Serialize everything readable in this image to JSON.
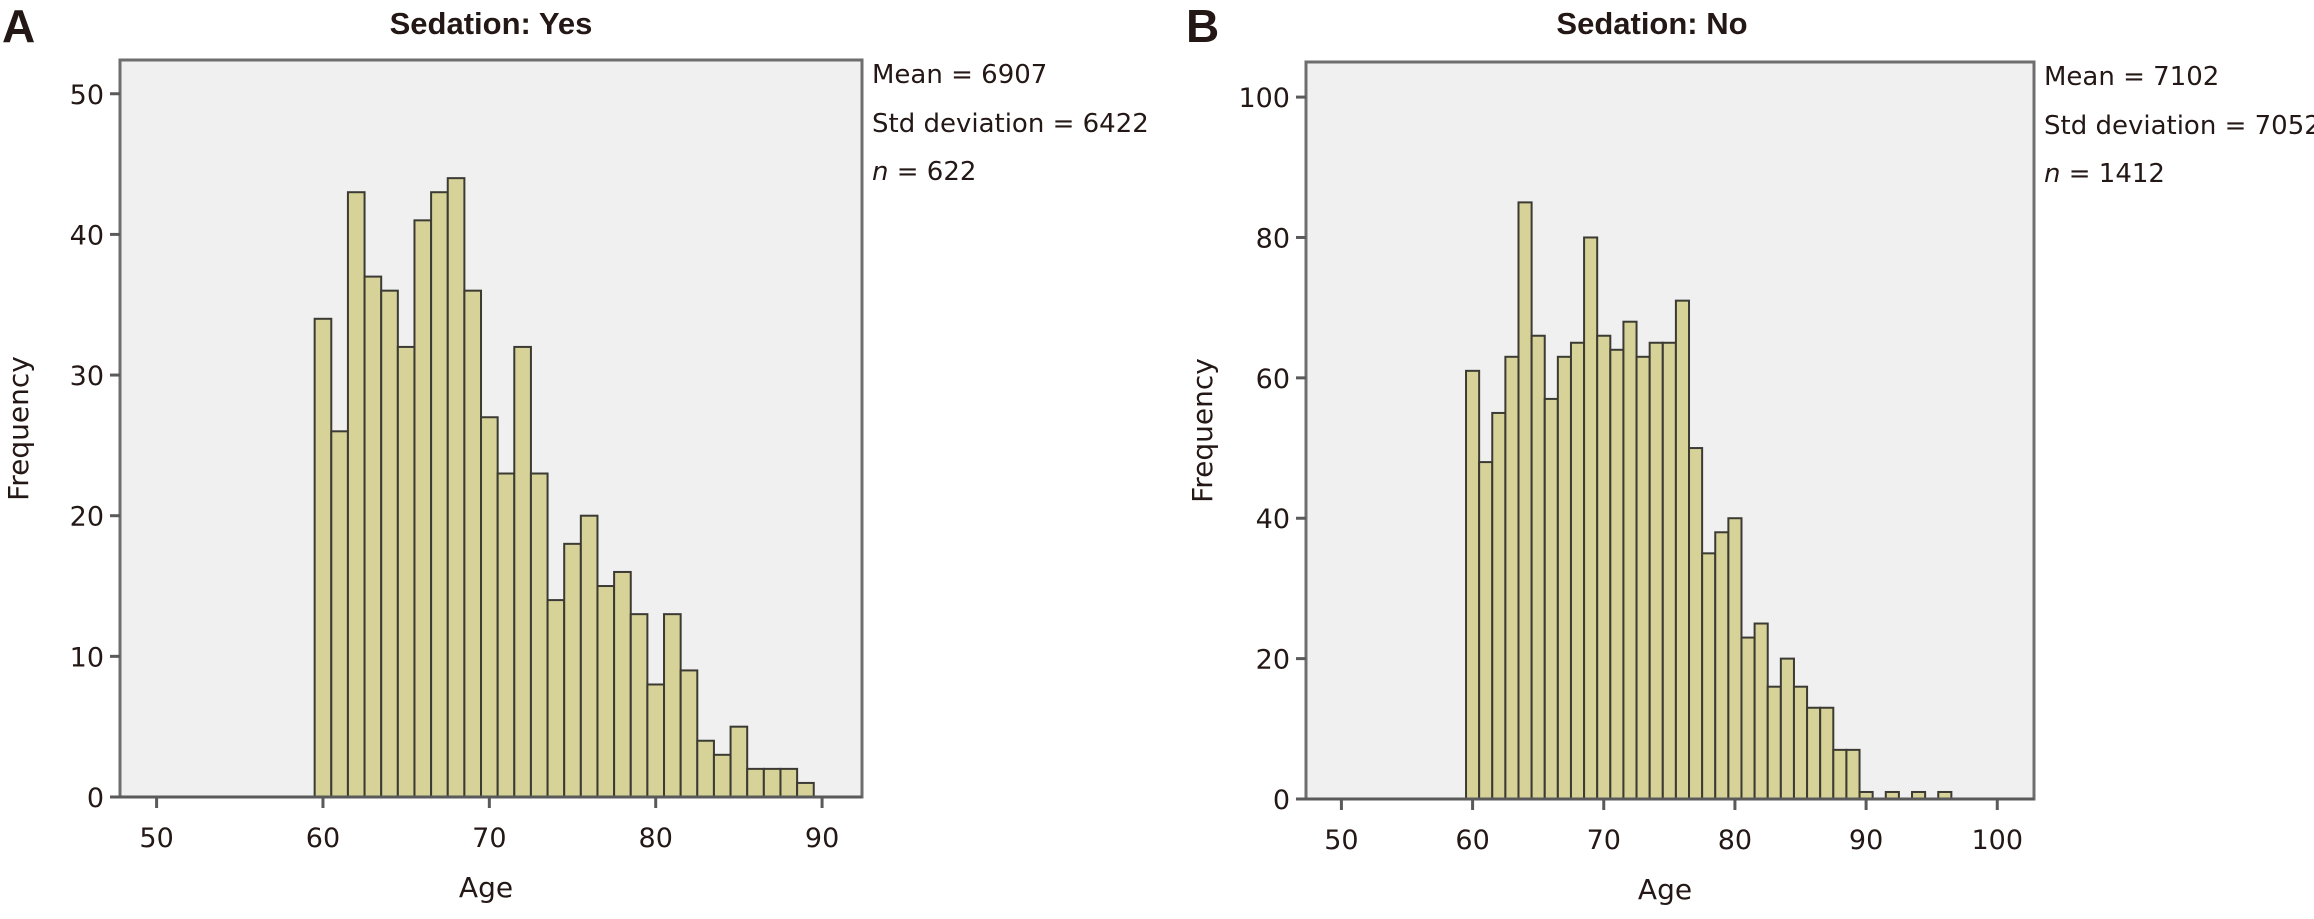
{
  "chart_data": [
    {
      "type": "bar",
      "panel": "A",
      "title": "Sedation: Yes",
      "xlabel": "Age",
      "ylabel": "Frequency",
      "bin_width": 1,
      "x": [
        60,
        61,
        62,
        63,
        64,
        65,
        66,
        67,
        68,
        69,
        70,
        71,
        72,
        73,
        74,
        75,
        76,
        77,
        78,
        79,
        80,
        81,
        82,
        83,
        84,
        85,
        86,
        87,
        88,
        89
      ],
      "values": [
        34,
        26,
        43,
        37,
        36,
        32,
        41,
        43,
        44,
        36,
        27,
        23,
        32,
        23,
        14,
        18,
        20,
        15,
        16,
        13,
        8,
        13,
        9,
        4,
        3,
        5,
        2,
        2,
        2,
        1
      ],
      "xlim": [
        47.8,
        92.4
      ],
      "ylim": [
        0,
        52.4
      ],
      "xticks": [
        50,
        60,
        70,
        80,
        90
      ],
      "yticks": [
        0,
        10,
        20,
        30,
        40,
        50
      ],
      "grid": false,
      "stats": {
        "mean_label": "Mean = 6907",
        "std_label": "Std deviation = 6422",
        "n_symbol": "n",
        "n_value": " = 622"
      },
      "colors": {
        "bar_fill": "#d6d298",
        "bar_edge": "#3b3a33",
        "plot_bg": "#f0f0f0"
      }
    },
    {
      "type": "bar",
      "panel": "B",
      "title": "Sedation: No",
      "xlabel": "Age",
      "ylabel": "Frequency",
      "bin_width": 1,
      "x": [
        60,
        61,
        62,
        63,
        64,
        65,
        66,
        67,
        68,
        69,
        70,
        71,
        72,
        73,
        74,
        75,
        76,
        77,
        78,
        79,
        80,
        81,
        82,
        83,
        84,
        85,
        86,
        87,
        88,
        89,
        90,
        91,
        92,
        93,
        94,
        95,
        96
      ],
      "values": [
        61,
        48,
        55,
        63,
        85,
        66,
        57,
        63,
        65,
        80,
        66,
        64,
        68,
        63,
        65,
        65,
        71,
        50,
        35,
        38,
        40,
        23,
        25,
        16,
        20,
        16,
        13,
        13,
        7,
        7,
        1,
        0,
        1,
        0,
        1,
        0,
        1
      ],
      "xlim": [
        47.3,
        102.8
      ],
      "ylim": [
        0,
        105
      ],
      "xticks": [
        50,
        60,
        70,
        80,
        90,
        100
      ],
      "yticks": [
        0,
        20,
        40,
        60,
        80,
        100
      ],
      "grid": false,
      "stats": {
        "mean_label": "Mean = 7102",
        "std_label": "Std deviation = 7052",
        "n_symbol": "n",
        "n_value": " = 1412"
      },
      "colors": {
        "bar_fill": "#d6d298",
        "bar_edge": "#3b3a33",
        "plot_bg": "#f0f0f0"
      }
    }
  ]
}
